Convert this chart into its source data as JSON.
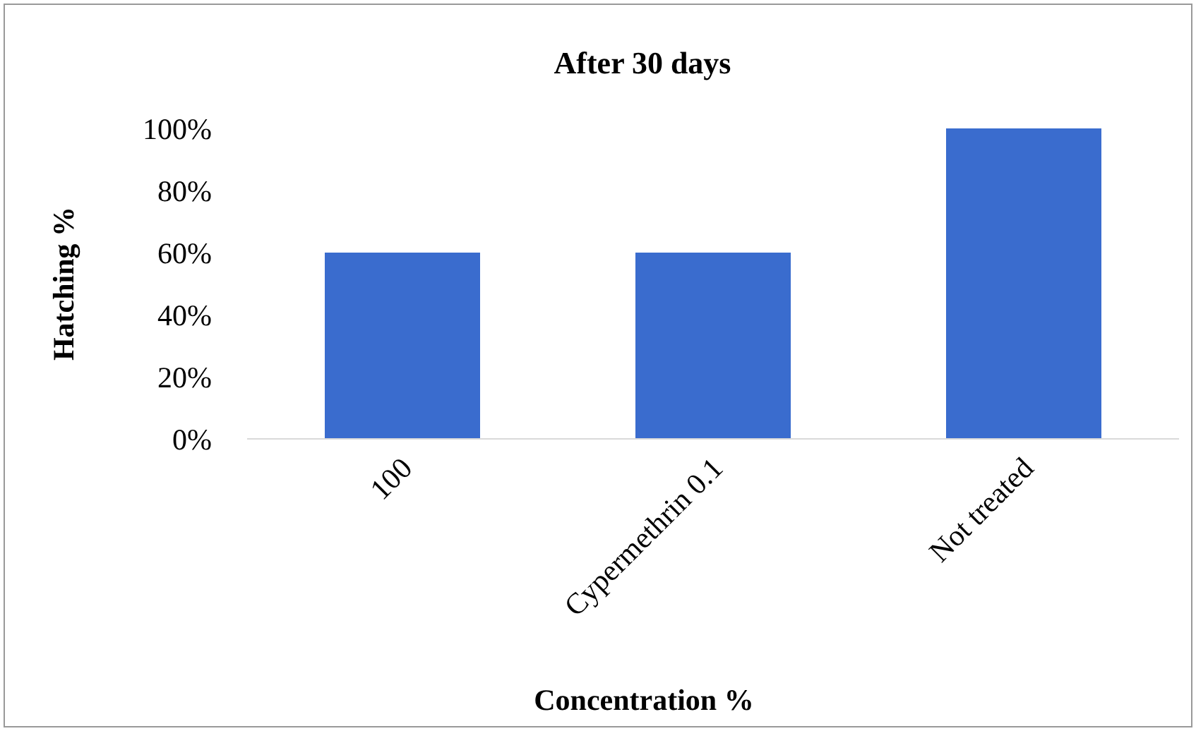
{
  "chart_data": {
    "type": "bar",
    "title": "After 30 days",
    "xlabel": "Concentration %",
    "ylabel": "Hatching %",
    "categories": [
      "100",
      "Cypermethrin 0.1",
      "Not treated"
    ],
    "values": [
      60,
      60,
      100
    ],
    "color": "#3a6cce",
    "ylim": [
      0,
      100
    ],
    "yticks": [
      {
        "value": 0,
        "label": "0%"
      },
      {
        "value": 20,
        "label": "20%"
      },
      {
        "value": 40,
        "label": "40%"
      },
      {
        "value": 60,
        "label": "60%"
      },
      {
        "value": 80,
        "label": "80%"
      },
      {
        "value": 100,
        "label": "100%"
      }
    ],
    "grid": false
  }
}
